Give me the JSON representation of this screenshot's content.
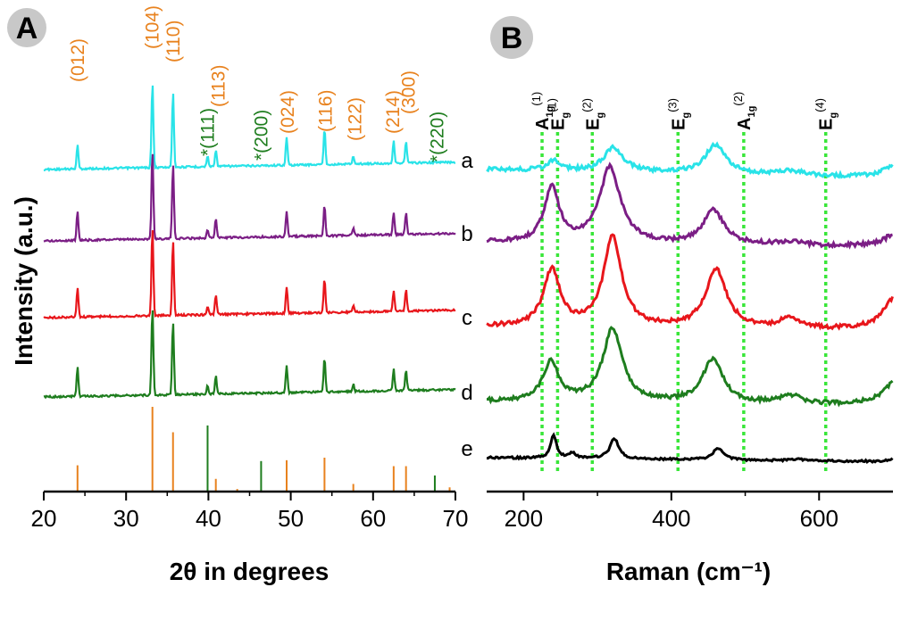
{
  "chart_data": [
    {
      "panel": "A",
      "type": "line",
      "xlabel": "2θ in degrees",
      "ylabel": "Intensity (a.u.)",
      "xlim": [
        20,
        70
      ],
      "xticks": [
        "20",
        "30",
        "40",
        "50",
        "60",
        "70"
      ],
      "series": [
        {
          "name": "a",
          "color": "#29e3e8",
          "offset": 0,
          "peaks": [
            [
              24.1,
              0.28
            ],
            [
              33.2,
              1.0
            ],
            [
              35.7,
              0.9
            ],
            [
              39.9,
              0.12
            ],
            [
              40.9,
              0.2
            ],
            [
              49.5,
              0.33
            ],
            [
              54.1,
              0.42
            ],
            [
              57.6,
              0.09
            ],
            [
              62.5,
              0.26
            ],
            [
              64.0,
              0.25
            ]
          ]
        },
        {
          "name": "b",
          "color": "#7b1e85",
          "offset": 1,
          "peaks": [
            [
              24.1,
              0.33
            ],
            [
              33.2,
              1.0
            ],
            [
              35.7,
              0.83
            ],
            [
              39.9,
              0.1
            ],
            [
              40.9,
              0.22
            ],
            [
              49.5,
              0.28
            ],
            [
              54.1,
              0.35
            ],
            [
              57.6,
              0.08
            ],
            [
              62.5,
              0.24
            ],
            [
              64.0,
              0.24
            ]
          ]
        },
        {
          "name": "c",
          "color": "#e8161b",
          "offset": 2,
          "peaks": [
            [
              24.1,
              0.33
            ],
            [
              33.2,
              1.0
            ],
            [
              35.7,
              0.84
            ],
            [
              39.9,
              0.1
            ],
            [
              40.9,
              0.22
            ],
            [
              49.5,
              0.3
            ],
            [
              54.1,
              0.38
            ],
            [
              57.6,
              0.08
            ],
            [
              62.5,
              0.24
            ],
            [
              64.0,
              0.24
            ]
          ]
        },
        {
          "name": "d",
          "color": "#1e7d1e",
          "offset": 3,
          "peaks": [
            [
              24.1,
              0.33
            ],
            [
              33.2,
              1.0
            ],
            [
              35.7,
              0.83
            ],
            [
              39.9,
              0.1
            ],
            [
              40.9,
              0.2
            ],
            [
              49.5,
              0.3
            ],
            [
              54.1,
              0.38
            ],
            [
              57.6,
              0.08
            ],
            [
              62.5,
              0.24
            ],
            [
              64.0,
              0.24
            ]
          ]
        }
      ],
      "reference_sticks": [
        {
          "x": 24.1,
          "h": 0.31,
          "color": "#e8821e"
        },
        {
          "x": 33.2,
          "h": 1.0,
          "color": "#e8821e"
        },
        {
          "x": 35.7,
          "h": 0.7,
          "color": "#e8821e"
        },
        {
          "x": 39.9,
          "h": 0.78,
          "color": "#1e7d1e"
        },
        {
          "x": 40.9,
          "h": 0.15,
          "color": "#e8821e"
        },
        {
          "x": 43.5,
          "h": 0.03,
          "color": "#e8821e"
        },
        {
          "x": 46.4,
          "h": 0.36,
          "color": "#1e7d1e"
        },
        {
          "x": 49.5,
          "h": 0.37,
          "color": "#e8821e"
        },
        {
          "x": 54.1,
          "h": 0.4,
          "color": "#e8821e"
        },
        {
          "x": 57.6,
          "h": 0.09,
          "color": "#e8821e"
        },
        {
          "x": 62.5,
          "h": 0.3,
          "color": "#e8821e"
        },
        {
          "x": 64.0,
          "h": 0.3,
          "color": "#e8821e"
        },
        {
          "x": 67.5,
          "h": 0.19,
          "color": "#1e7d1e"
        },
        {
          "x": 69.3,
          "h": 0.05,
          "color": "#e8821e"
        }
      ],
      "annotations": [
        {
          "text": "(012)",
          "x": 24.1,
          "color": "#e8821e"
        },
        {
          "text": "(104)",
          "x": 33.2,
          "color": "#e8821e"
        },
        {
          "text": "(110)",
          "x": 35.7,
          "color": "#e8821e"
        },
        {
          "text": "*(111)",
          "x": 39.9,
          "color": "#1e7d1e"
        },
        {
          "text": "(113)",
          "x": 41.2,
          "color": "#e8821e"
        },
        {
          "text": "*(200)",
          "x": 46.4,
          "color": "#1e7d1e"
        },
        {
          "text": "(024)",
          "x": 49.6,
          "color": "#e8821e"
        },
        {
          "text": "(116)",
          "x": 54.2,
          "color": "#e8821e"
        },
        {
          "text": "(122)",
          "x": 57.8,
          "color": "#e8821e"
        },
        {
          "text": "(214)",
          "x": 62.4,
          "color": "#e8821e"
        },
        {
          "text": "(300)",
          "x": 64.3,
          "color": "#e8821e"
        },
        {
          "text": "*(220)",
          "x": 67.8,
          "color": "#1e7d1e"
        }
      ]
    },
    {
      "panel": "B",
      "type": "line",
      "xlabel": "Raman (cm⁻¹)",
      "xlim": [
        150,
        700
      ],
      "xticks": [
        "200",
        "400",
        "600"
      ],
      "series": [
        {
          "name": "a",
          "color": "#29e3e8",
          "offset": 0,
          "peaks": [
            [
              225,
              0.18,
              8
            ],
            [
              292,
              0.42,
              13
            ],
            [
              406,
              0.5,
              14
            ],
            [
              490,
              0.08,
              15
            ],
            [
              609,
              0.22,
              16
            ]
          ]
        },
        {
          "name": "b",
          "color": "#7b1e85",
          "offset": 1,
          "peaks": [
            [
              223,
              0.72,
              10
            ],
            [
              288,
              1.0,
              14
            ],
            [
              404,
              0.45,
              14
            ],
            [
              490,
              0.05,
              14
            ],
            [
              607,
              0.16,
              15
            ]
          ]
        },
        {
          "name": "c",
          "color": "#e8161b",
          "offset": 2,
          "peaks": [
            [
              223,
              0.75,
              11
            ],
            [
              291,
              1.2,
              12
            ],
            [
              407,
              0.77,
              14
            ],
            [
              490,
              0.14,
              14
            ],
            [
              608,
              0.45,
              16
            ]
          ]
        },
        {
          "name": "d",
          "color": "#1e7d1e",
          "offset": 3,
          "peaks": [
            [
              222,
              0.58,
              11
            ],
            [
              291,
              1.1,
              13
            ],
            [
              403,
              0.65,
              14
            ],
            [
              490,
              0.12,
              15
            ],
            [
              607,
              0.35,
              16
            ]
          ]
        },
        {
          "name": "e",
          "color": "#000000",
          "offset": 4,
          "peaks": [
            [
              225,
              0.52,
              4
            ],
            [
              246,
              0.12,
              4
            ],
            [
              293,
              0.45,
              6
            ],
            [
              409,
              0.26,
              7
            ],
            [
              498,
              0.04,
              8
            ],
            [
              609,
              0.11,
              8
            ]
          ]
        }
      ],
      "mode_lines": [
        {
          "x": 225,
          "base": "A",
          "sub": "1g",
          "sup": "(1)"
        },
        {
          "x": 246,
          "base": "E",
          "sub": "g",
          "sup": "(1)"
        },
        {
          "x": 293,
          "base": "E",
          "sub": "g",
          "sup": "(2)"
        },
        {
          "x": 409,
          "base": "E",
          "sub": "g",
          "sup": "(3)"
        },
        {
          "x": 498,
          "base": "A",
          "sub": "1g",
          "sup": "(2)"
        },
        {
          "x": 609,
          "base": "E",
          "sub": "g",
          "sup": "(4)"
        }
      ],
      "mode_line_color": "#39e639"
    }
  ]
}
